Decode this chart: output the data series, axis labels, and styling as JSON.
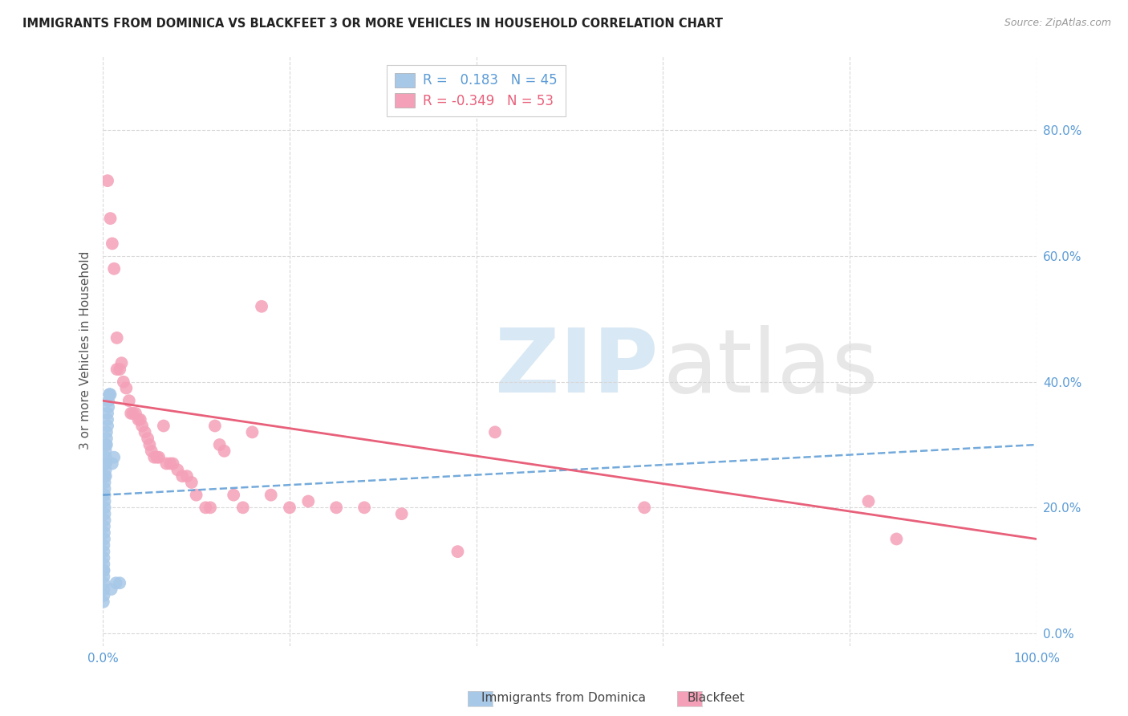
{
  "title": "IMMIGRANTS FROM DOMINICA VS BLACKFEET 3 OR MORE VEHICLES IN HOUSEHOLD CORRELATION CHART",
  "source": "Source: ZipAtlas.com",
  "ylabel": "3 or more Vehicles in Household",
  "xlim": [
    0.0,
    1.0
  ],
  "ylim": [
    -0.02,
    0.92
  ],
  "xticks": [
    0.0,
    0.2,
    0.4,
    0.6,
    0.8,
    1.0
  ],
  "yticks": [
    0.0,
    0.2,
    0.4,
    0.6,
    0.8
  ],
  "xticklabels": [
    "0.0%",
    "",
    "",
    "",
    "",
    "100.0%"
  ],
  "yticklabels": [
    "0.0%",
    "20.0%",
    "40.0%",
    "60.0%",
    "80.0%"
  ],
  "legend_labels": [
    "Immigrants from Dominica",
    "Blackfeet"
  ],
  "r_dominica": 0.183,
  "n_dominica": 45,
  "r_blackfeet": -0.349,
  "n_blackfeet": 53,
  "blue_color": "#a8c8e8",
  "blue_line_color": "#5b9bd5",
  "pink_color": "#f4a0b8",
  "pink_line_color": "#e8607a",
  "background_color": "#ffffff",
  "grid_color": "#d8d8d8",
  "dominica_x": [
    0.0005,
    0.001,
    0.001,
    0.001,
    0.001,
    0.001,
    0.001,
    0.001,
    0.001,
    0.001,
    0.001,
    0.0015,
    0.0015,
    0.0015,
    0.002,
    0.002,
    0.002,
    0.002,
    0.002,
    0.002,
    0.002,
    0.002,
    0.003,
    0.003,
    0.003,
    0.003,
    0.003,
    0.003,
    0.003,
    0.004,
    0.004,
    0.004,
    0.005,
    0.005,
    0.005,
    0.006,
    0.006,
    0.007,
    0.007,
    0.008,
    0.009,
    0.01,
    0.012,
    0.014,
    0.018
  ],
  "dominica_y": [
    0.05,
    0.06,
    0.07,
    0.08,
    0.09,
    0.1,
    0.1,
    0.11,
    0.12,
    0.13,
    0.14,
    0.15,
    0.16,
    0.17,
    0.18,
    0.19,
    0.2,
    0.21,
    0.22,
    0.23,
    0.24,
    0.25,
    0.25,
    0.26,
    0.27,
    0.27,
    0.28,
    0.29,
    0.3,
    0.3,
    0.31,
    0.32,
    0.33,
    0.34,
    0.35,
    0.36,
    0.37,
    0.38,
    0.38,
    0.38,
    0.07,
    0.27,
    0.28,
    0.08,
    0.08
  ],
  "blackfeet_x": [
    0.005,
    0.008,
    0.01,
    0.012,
    0.015,
    0.015,
    0.018,
    0.02,
    0.022,
    0.025,
    0.028,
    0.03,
    0.032,
    0.035,
    0.038,
    0.04,
    0.042,
    0.045,
    0.048,
    0.05,
    0.052,
    0.055,
    0.058,
    0.06,
    0.065,
    0.068,
    0.072,
    0.075,
    0.08,
    0.085,
    0.09,
    0.095,
    0.1,
    0.11,
    0.115,
    0.12,
    0.125,
    0.13,
    0.14,
    0.15,
    0.16,
    0.17,
    0.18,
    0.2,
    0.22,
    0.25,
    0.28,
    0.32,
    0.38,
    0.42,
    0.58,
    0.82,
    0.85
  ],
  "blackfeet_y": [
    0.72,
    0.66,
    0.62,
    0.58,
    0.47,
    0.42,
    0.42,
    0.43,
    0.4,
    0.39,
    0.37,
    0.35,
    0.35,
    0.35,
    0.34,
    0.34,
    0.33,
    0.32,
    0.31,
    0.3,
    0.29,
    0.28,
    0.28,
    0.28,
    0.33,
    0.27,
    0.27,
    0.27,
    0.26,
    0.25,
    0.25,
    0.24,
    0.22,
    0.2,
    0.2,
    0.33,
    0.3,
    0.29,
    0.22,
    0.2,
    0.32,
    0.52,
    0.22,
    0.2,
    0.21,
    0.2,
    0.2,
    0.19,
    0.13,
    0.32,
    0.2,
    0.21,
    0.15
  ],
  "blue_trend_x": [
    0.0,
    1.0
  ],
  "blue_trend_y": [
    0.22,
    0.3
  ],
  "pink_trend_x": [
    0.0,
    1.0
  ],
  "pink_trend_y": [
    0.37,
    0.15
  ]
}
